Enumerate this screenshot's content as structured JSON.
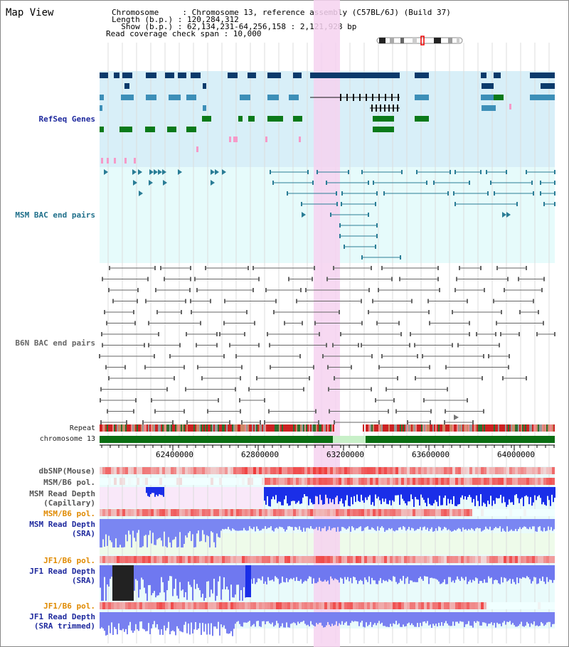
{
  "header": {
    "title": "Map View",
    "chromosome_line": "Chromosome     : Chromosome 13, reference assembly (C57BL/6J) (Build 37)",
    "length_line": "Length (b.p.) : 120,284,312",
    "show_line": "  Show (b.p.) : 62,134,231-64,256,158 : 2,121,928 bp",
    "coverage_line": "Read coverage check span : 10,000"
  },
  "tracks": {
    "refseq": "RefSeq Genes",
    "msm_bac": "MSM BAC end pairs",
    "b6n_bac": "B6N BAC end pairs",
    "repeat": "Repeat",
    "chrom": "chromosome 13",
    "dbsnp": "dbSNP(Mouse)",
    "msm_b6_pol_1": "MSM/B6 pol.",
    "msm_depth_cap_1": "MSM Read Depth",
    "msm_depth_cap_2": "(Capillary)",
    "msm_b6_pol_2": "MSM/B6 pol.",
    "msm_depth_sra_1": "MSM Read Depth",
    "msm_depth_sra_2": "(SRA)",
    "jf1_b6_pol_1": "JF1/B6 pol.",
    "jf1_depth_sra_1": "JF1 Read Depth",
    "jf1_depth_sra_2": "(SRA)",
    "jf1_b6_pol_2": "JF1/B6 pol.",
    "jf1_depth_trim_1": "JF1 Read Depth",
    "jf1_depth_trim_2": "(SRA trimmed)"
  },
  "axis": {
    "ticks": [
      "62400000",
      "62800000",
      "63200000",
      "63600000",
      "64000000"
    ]
  },
  "colors": {
    "refseq_bg": "#d8eff8",
    "bac_bg": "#e6fbfb",
    "highlight": "#f6d2f0",
    "gene_dark": "#0b3a6b",
    "gene_mid": "#3d8fb8",
    "gene_green": "#0a7a1a",
    "msm_bac": "#2a7d96",
    "b6n_bac": "#666666",
    "chrom_green": "#0a6e12",
    "depth_blue": "#1a2ee8",
    "depth_lightblue": "#7480f0",
    "orange_label": "#e08a00",
    "blue_label": "#1f2a9e",
    "teal_label": "#1f6f8a"
  }
}
